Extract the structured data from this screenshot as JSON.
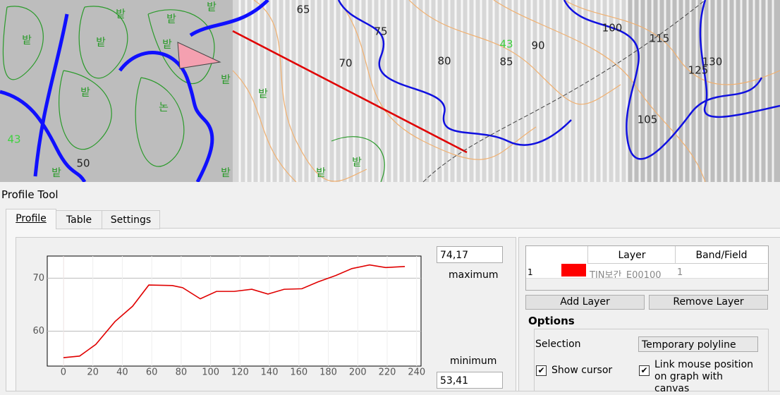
{
  "map": {
    "labels": [
      "밭",
      "밭",
      "밭",
      "밭",
      "밭",
      "밭",
      "밭",
      "논",
      "밭",
      "밭",
      "밭",
      "밭",
      "밭",
      "밭",
      "50",
      "65",
      "75",
      "70",
      "80",
      "85",
      "90",
      "100",
      "115",
      "125",
      "130",
      "105",
      "43",
      "43"
    ]
  },
  "panel": {
    "title": "Profile Tool",
    "tabs": [
      "Profile",
      "Table",
      "Settings"
    ],
    "max_box": "74,17",
    "max_label": "maximum",
    "min_label": "minimum",
    "min_box": "53,41",
    "table": {
      "headers": [
        "Layer",
        "Band/Field"
      ],
      "rows": [
        [
          "1",
          "TIN보간_E00100",
          "1"
        ]
      ]
    },
    "buttons": [
      "Add Layer",
      "Remove Layer"
    ],
    "options": {
      "title": "Options",
      "selection_label": "Selection",
      "selection_value": "Temporary polyline",
      "show_cursor": "Show cursor",
      "link_mouse": "Link mouse position on graph with canvas"
    }
  },
  "chart_data": {
    "type": "line",
    "color": "#e00000",
    "x": [
      0,
      11,
      22,
      35,
      47,
      58,
      74,
      81,
      93,
      104,
      116,
      128,
      139,
      150,
      162,
      173,
      185,
      196,
      208,
      219,
      232
    ],
    "values": [
      55.0,
      55.3,
      57.5,
      61.8,
      64.7,
      68.7,
      68.6,
      68.2,
      66.1,
      67.5,
      67.5,
      67.9,
      67.0,
      67.9,
      68.0,
      69.3,
      70.5,
      71.8,
      72.5,
      72.0,
      72.2
    ],
    "xlim": [
      -11,
      243
    ],
    "ylim": [
      53.41,
      74.17
    ],
    "xticks": [
      0,
      20,
      40,
      60,
      80,
      100,
      120,
      140,
      160,
      180,
      200,
      220,
      240
    ],
    "yticks": [
      60,
      70
    ],
    "grid": true
  }
}
